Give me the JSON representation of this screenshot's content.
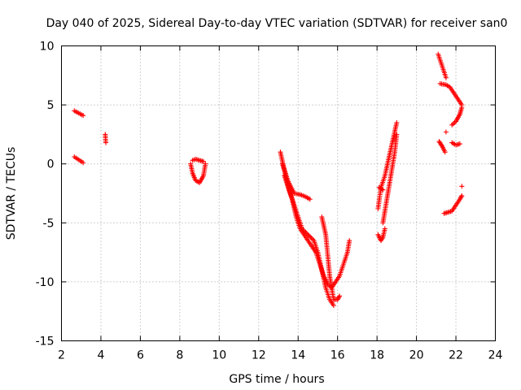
{
  "chart_data": {
    "type": "scatter",
    "title": "Day 040 of 2025, Sidereal Day-to-day VTEC variation (SDTVAR) for receiver san0",
    "xlabel": "GPS time / hours",
    "ylabel": "SDTVAR / TECUs",
    "xlim": [
      2,
      24
    ],
    "ylim": [
      -15,
      10
    ],
    "xticks": [
      2,
      4,
      6,
      8,
      10,
      12,
      14,
      16,
      18,
      20,
      22,
      24
    ],
    "yticks": [
      10,
      5,
      0,
      -5,
      -10,
      -15
    ],
    "grid": true,
    "marker": "+",
    "color": "#ff0000",
    "segments": [
      {
        "x": [
          2.65,
          3.1
        ],
        "y": [
          4.5,
          4.1
        ]
      },
      {
        "x": [
          2.65,
          3.1
        ],
        "y": [
          0.6,
          0.1
        ]
      },
      {
        "x": [
          4.22,
          4.25
        ],
        "y": [
          2.5,
          1.8
        ]
      },
      {
        "x": [
          8.55,
          8.65,
          8.8,
          9.0,
          9.2,
          9.3
        ],
        "y": [
          0.0,
          -0.8,
          -1.4,
          -1.6,
          -1.0,
          0.0
        ]
      },
      {
        "x": [
          8.65,
          8.8,
          9.0,
          9.2
        ],
        "y": [
          0.3,
          0.4,
          0.3,
          0.2
        ]
      },
      {
        "x": [
          13.1,
          13.3,
          13.5,
          13.7,
          13.9,
          14.1,
          14.3,
          14.5,
          14.7,
          14.9,
          15.1,
          15.3,
          15.5,
          15.7,
          15.9,
          16.1,
          16.3,
          16.5,
          16.6
        ],
        "y": [
          1.0,
          -0.5,
          -2.0,
          -3.0,
          -4.5,
          -5.5,
          -6.0,
          -6.5,
          -7.0,
          -7.5,
          -8.5,
          -9.5,
          -10.2,
          -10.5,
          -10.0,
          -9.5,
          -8.5,
          -7.5,
          -6.5
        ]
      },
      {
        "x": [
          13.2,
          13.5,
          13.8,
          14.1,
          14.4,
          14.6
        ],
        "y": [
          0.0,
          -1.5,
          -2.5,
          -2.6,
          -2.8,
          -3.0
        ]
      },
      {
        "x": [
          13.3,
          13.6,
          13.9,
          14.2,
          14.5,
          14.8,
          15.0,
          15.2,
          15.4,
          15.6,
          15.8
        ],
        "y": [
          -1.0,
          -2.5,
          -4.0,
          -5.5,
          -6.0,
          -6.5,
          -7.5,
          -9.0,
          -10.5,
          -11.5,
          -12.0
        ]
      },
      {
        "x": [
          15.2,
          15.4,
          15.6,
          15.8,
          16.0,
          16.1
        ],
        "y": [
          -4.5,
          -6.0,
          -9.5,
          -11.5,
          -11.5,
          -11.2
        ]
      },
      {
        "x": [
          18.05,
          18.2,
          18.3,
          18.4
        ],
        "y": [
          -6.0,
          -6.5,
          -6.2,
          -5.5
        ]
      },
      {
        "x": [
          18.05,
          18.2,
          18.4,
          18.6,
          18.8,
          19.0
        ],
        "y": [
          -3.8,
          -2.0,
          -1.0,
          0.5,
          2.0,
          3.5
        ]
      },
      {
        "x": [
          18.3,
          18.5,
          18.7,
          18.9,
          19.0
        ],
        "y": [
          -5.0,
          -3.0,
          -1.0,
          1.0,
          2.5
        ]
      },
      {
        "x": [
          18.1,
          18.3
        ],
        "y": [
          -2.0,
          -2.2
        ]
      },
      {
        "x": [
          21.1,
          21.3,
          21.5
        ],
        "y": [
          9.3,
          8.3,
          7.3
        ]
      },
      {
        "x": [
          21.2,
          21.5,
          21.7,
          21.9,
          22.1,
          22.3
        ],
        "y": [
          6.8,
          6.7,
          6.5,
          6.0,
          5.5,
          5.0
        ]
      },
      {
        "x": [
          21.8,
          22.0,
          22.2,
          22.3
        ],
        "y": [
          3.3,
          3.6,
          4.2,
          4.8
        ]
      },
      {
        "x": [
          21.15,
          21.3,
          21.45
        ],
        "y": [
          1.9,
          1.5,
          1.0
        ]
      },
      {
        "x": [
          21.8,
          22.0,
          22.2
        ],
        "y": [
          1.8,
          1.6,
          1.7
        ]
      },
      {
        "x": [
          21.4,
          21.6,
          21.8,
          22.0,
          22.2,
          22.3
        ],
        "y": [
          -4.2,
          -4.1,
          -4.0,
          -3.5,
          -3.0,
          -2.7
        ]
      },
      {
        "x": [
          21.5
        ],
        "y": [
          2.7
        ]
      },
      {
        "x": [
          22.3
        ],
        "y": [
          -1.9
        ]
      }
    ]
  }
}
